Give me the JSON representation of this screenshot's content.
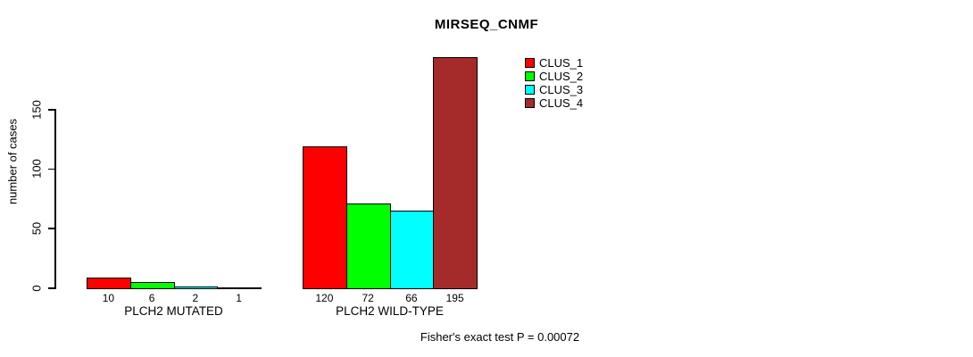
{
  "chart_data": {
    "type": "bar",
    "title": "MIRSEQ_CNMF",
    "ylabel": "number of cases",
    "xlabel": "",
    "ylim": [
      0,
      195
    ],
    "y_ticks": [
      0,
      50,
      100,
      150
    ],
    "grid": false,
    "legend_position": "top-right-inside",
    "categories": [
      "PLCH2 MUTATED",
      "PLCH2 WILD-TYPE"
    ],
    "series": [
      {
        "name": "CLUS_1",
        "color": "#ff0000",
        "values": [
          10,
          120
        ]
      },
      {
        "name": "CLUS_2",
        "color": "#00ff00",
        "values": [
          6,
          72
        ]
      },
      {
        "name": "CLUS_3",
        "color": "#00ffff",
        "values": [
          2,
          66
        ]
      },
      {
        "name": "CLUS_4",
        "color": "#a52a2a",
        "values": [
          1,
          195
        ]
      }
    ],
    "bar_value_labels": {
      "PLCH2 MUTATED": [
        10,
        6,
        2,
        1
      ],
      "PLCH2 WILD-TYPE": [
        120,
        72,
        66,
        195
      ]
    },
    "annotation": "Fisher's exact test P = 0.00072"
  },
  "colors": {
    "axis": "#000000",
    "text": "#000000",
    "background": "#ffffff"
  }
}
